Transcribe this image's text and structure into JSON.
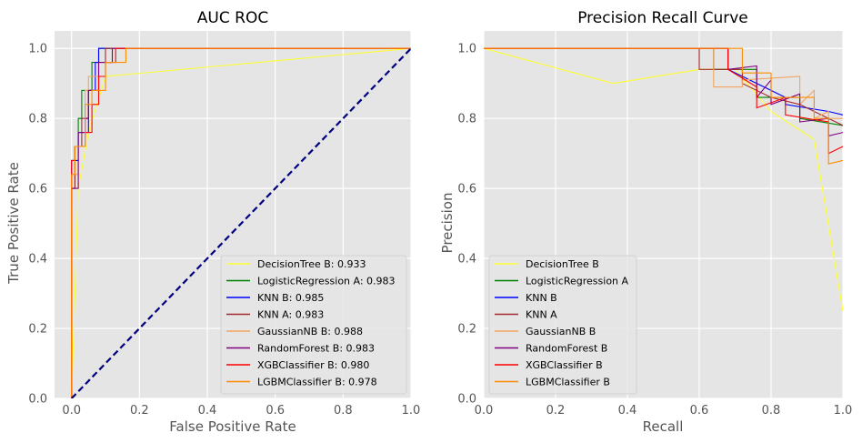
{
  "colors": {
    "axes_bg": "#e5e5e5",
    "grid": "#ffffff",
    "diagonal": "#000080",
    "legend_bg": "#e5e5e5"
  },
  "chart_data": [
    {
      "type": "line",
      "title": "AUC ROC",
      "xlabel": "False Positive Rate",
      "ylabel": "True Positive Rate",
      "xlim": [
        -0.05,
        1.0
      ],
      "ylim": [
        0.0,
        1.05
      ],
      "xticks": [
        "0.0",
        "0.2",
        "0.4",
        "0.6",
        "0.8",
        "1.0"
      ],
      "yticks": [
        "0.0",
        "0.2",
        "0.4",
        "0.6",
        "0.8",
        "1.0"
      ],
      "grid": true,
      "legend_position": "lower-right",
      "reference_line": {
        "style": "dashed",
        "color": "#000080",
        "x": [
          0,
          1
        ],
        "y": [
          0,
          1
        ]
      },
      "series": [
        {
          "name": "DecisionTree B:  0.933",
          "color": "#ffff33",
          "x": [
            0,
            0.02,
            0.05,
            0.1,
            1.0
          ],
          "y": [
            0,
            0.6,
            0.76,
            0.92,
            1.0
          ]
        },
        {
          "name": "LogisticRegression A:  0.983",
          "color": "#008000",
          "x": [
            0,
            0,
            0.01,
            0.01,
            0.02,
            0.02,
            0.03,
            0.03,
            0.06,
            0.06,
            0.08,
            0.08,
            1.0
          ],
          "y": [
            0,
            0.6,
            0.6,
            0.72,
            0.72,
            0.8,
            0.8,
            0.88,
            0.88,
            0.96,
            0.96,
            1.0,
            1.0
          ]
        },
        {
          "name": "KNN B:  0.985",
          "color": "#0000ff",
          "x": [
            0,
            0,
            0.02,
            0.02,
            0.05,
            0.05,
            0.07,
            0.07,
            0.08,
            0.08,
            1.0
          ],
          "y": [
            0,
            0.68,
            0.68,
            0.76,
            0.76,
            0.88,
            0.88,
            0.96,
            0.96,
            1.0,
            1.0
          ]
        },
        {
          "name": "KNN A:  0.983",
          "color": "#a52a2a",
          "x": [
            0,
            0,
            0.01,
            0.01,
            0.03,
            0.03,
            0.05,
            0.05,
            0.08,
            0.08,
            0.1,
            0.1,
            1.0
          ],
          "y": [
            0,
            0.6,
            0.6,
            0.72,
            0.72,
            0.8,
            0.8,
            0.88,
            0.88,
            0.96,
            0.96,
            1.0,
            1.0
          ]
        },
        {
          "name": "GaussianNB B:  0.988",
          "color": "#f4a460",
          "x": [
            0,
            0,
            0.02,
            0.02,
            0.04,
            0.04,
            0.05,
            0.05,
            0.1,
            0.1,
            0.12,
            0.12,
            1.0
          ],
          "y": [
            0,
            0.64,
            0.64,
            0.72,
            0.72,
            0.88,
            0.88,
            0.92,
            0.92,
            0.96,
            0.96,
            1.0,
            1.0
          ]
        },
        {
          "name": "RandomForest B:  0.983",
          "color": "#800080",
          "x": [
            0,
            0,
            0.02,
            0.02,
            0.04,
            0.04,
            0.05,
            0.05,
            0.08,
            0.08,
            0.12,
            0.12,
            1.0
          ],
          "y": [
            0,
            0.6,
            0.6,
            0.76,
            0.76,
            0.8,
            0.8,
            0.88,
            0.88,
            0.96,
            0.96,
            1.0,
            1.0
          ]
        },
        {
          "name": "XGBClassifier B:  0.980",
          "color": "#ff0000",
          "x": [
            0,
            0,
            0.01,
            0.01,
            0.04,
            0.04,
            0.06,
            0.06,
            0.08,
            0.08,
            0.1,
            0.1,
            0.13,
            0.13,
            1.0
          ],
          "y": [
            0,
            0.68,
            0.68,
            0.72,
            0.72,
            0.76,
            0.76,
            0.84,
            0.84,
            0.92,
            0.92,
            0.96,
            0.96,
            1.0,
            1.0
          ]
        },
        {
          "name": "LGBMClassifier B:  0.978",
          "color": "#ff8c00",
          "x": [
            0,
            0,
            0.01,
            0.01,
            0.04,
            0.04,
            0.06,
            0.06,
            0.1,
            0.1,
            0.16,
            0.16,
            1.0
          ],
          "y": [
            0,
            0.64,
            0.64,
            0.72,
            0.72,
            0.84,
            0.84,
            0.88,
            0.88,
            0.96,
            0.96,
            1.0,
            1.0
          ]
        }
      ]
    },
    {
      "type": "line",
      "title": "Precision Recall Curve",
      "xlabel": "Recall",
      "ylabel": "Precision",
      "xlim": [
        0.0,
        1.0
      ],
      "ylim": [
        0.0,
        1.05
      ],
      "xticks": [
        "0.0",
        "0.2",
        "0.4",
        "0.6",
        "0.8",
        "1.0"
      ],
      "yticks": [
        "0.0",
        "0.2",
        "0.4",
        "0.6",
        "0.8",
        "1.0"
      ],
      "grid": true,
      "legend_position": "lower-left",
      "series": [
        {
          "name": "DecisionTree B",
          "color": "#ffff33",
          "x": [
            0,
            0.36,
            0.6,
            0.7,
            0.8,
            0.92,
            1.0
          ],
          "y": [
            1.0,
            0.9,
            0.94,
            0.94,
            0.82,
            0.74,
            0.25
          ]
        },
        {
          "name": "LogisticRegression A",
          "color": "#008000",
          "x": [
            0,
            0.64,
            0.64,
            0.76,
            0.76,
            0.88,
            0.88,
            1.0
          ],
          "y": [
            1.0,
            1.0,
            0.94,
            0.94,
            0.86,
            0.86,
            0.8,
            0.78
          ]
        },
        {
          "name": "KNN B",
          "color": "#0000ff",
          "x": [
            0,
            0.68,
            0.68,
            0.84,
            0.84,
            0.96,
            0.96,
            1.0
          ],
          "y": [
            1.0,
            1.0,
            0.94,
            0.86,
            0.84,
            0.82,
            0.82,
            0.81
          ]
        },
        {
          "name": "KNN A",
          "color": "#a52a2a",
          "x": [
            0,
            0.6,
            0.6,
            0.72,
            0.72,
            0.8,
            0.88,
            0.96,
            1.0
          ],
          "y": [
            1.0,
            1.0,
            0.94,
            0.94,
            0.9,
            0.86,
            0.84,
            0.8,
            0.78
          ]
        },
        {
          "name": "GaussianNB B",
          "color": "#f4a460",
          "x": [
            0,
            0.64,
            0.64,
            0.72,
            0.72,
            0.88,
            0.88,
            0.92,
            0.92,
            0.96,
            0.96,
            1.0
          ],
          "y": [
            1.0,
            1.0,
            0.89,
            0.89,
            0.91,
            0.92,
            0.84,
            0.88,
            0.8,
            0.82,
            0.8,
            0.8
          ]
        },
        {
          "name": "RandomForest B",
          "color": "#800080",
          "x": [
            0,
            0.68,
            0.68,
            0.76,
            0.76,
            0.8,
            0.8,
            0.88,
            0.88,
            0.96,
            0.96,
            1.0
          ],
          "y": [
            1.0,
            1.0,
            0.94,
            0.95,
            0.86,
            0.91,
            0.84,
            0.87,
            0.79,
            0.8,
            0.75,
            0.76
          ]
        },
        {
          "name": "XGBClassifier B",
          "color": "#ff0000",
          "x": [
            0,
            0.68,
            0.68,
            0.76,
            0.76,
            0.84,
            0.84,
            0.96,
            0.96,
            1.0
          ],
          "y": [
            1.0,
            1.0,
            0.94,
            0.89,
            0.83,
            0.86,
            0.81,
            0.79,
            0.7,
            0.72
          ]
        },
        {
          "name": "LGBMClassifier B",
          "color": "#ff8c00",
          "x": [
            0,
            0.72,
            0.72,
            0.8,
            0.8,
            0.92,
            0.92,
            0.96,
            0.96,
            1.0
          ],
          "y": [
            1.0,
            1.0,
            0.93,
            0.93,
            0.86,
            0.86,
            0.8,
            0.8,
            0.67,
            0.68
          ]
        }
      ]
    }
  ]
}
